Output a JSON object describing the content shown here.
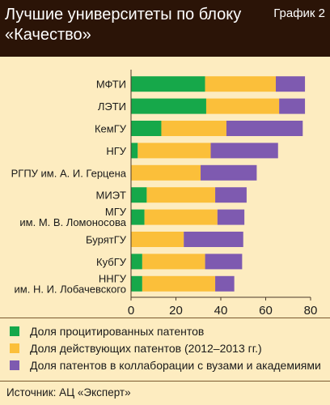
{
  "header": {
    "title_line1": "Лучшие университеты по блоку",
    "title_line2": "«Качество»",
    "tag": "График 2"
  },
  "chart_data": {
    "type": "bar",
    "orientation": "horizontal",
    "stacked": true,
    "categories": [
      [
        "МФТИ"
      ],
      [
        "ЛЭТИ"
      ],
      [
        "КемГУ"
      ],
      [
        "НГУ"
      ],
      [
        "РГПУ им. А. И. Герцена"
      ],
      [
        "МИЭТ"
      ],
      [
        "МГУ",
        "им. М. В. Ломоносова"
      ],
      [
        "БурятГУ"
      ],
      [
        "КубГУ"
      ],
      [
        "ННГУ",
        "им. Н. И. Лобачевского"
      ]
    ],
    "series": [
      {
        "name": "Доля процитированных патентов",
        "color": "#16a84a",
        "values": [
          33,
          33.5,
          13.5,
          3,
          0,
          7,
          6,
          0,
          5,
          5
        ]
      },
      {
        "name": "Доля действующих патентов (2012–2013 гг.)",
        "color": "#fbbf3a",
        "values": [
          31.5,
          32.5,
          29,
          32.5,
          31,
          30.5,
          32.5,
          23.5,
          28,
          32.5
        ]
      },
      {
        "name": "Доля патентов в коллаборации с вузами и академиями",
        "color": "#7e5ab0",
        "values": [
          13,
          11.5,
          34,
          30,
          25,
          14,
          12,
          26.5,
          16.5,
          8.5
        ]
      }
    ],
    "x_ticks": [
      "0",
      "20",
      "40",
      "60",
      "80"
    ],
    "xlim": [
      0,
      80
    ]
  },
  "source": "Источник: АЦ «Эксперт»"
}
